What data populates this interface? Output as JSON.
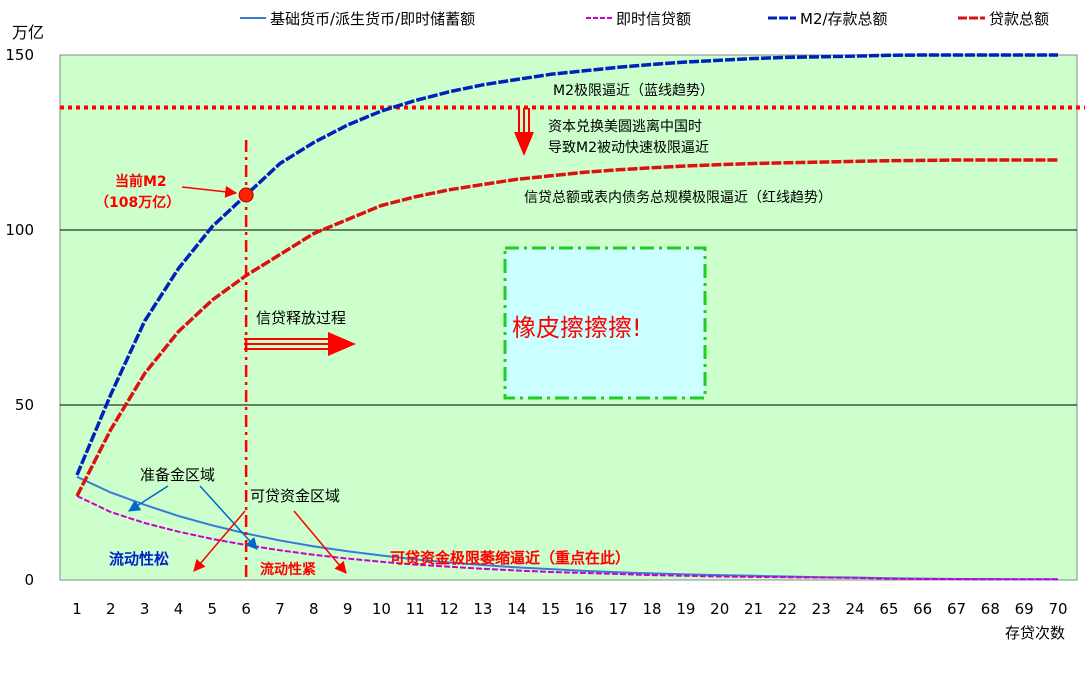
{
  "chart_data": {
    "type": "line",
    "ylabel": "万亿",
    "xlabel": "存贷次数",
    "ylim": [
      0,
      150
    ],
    "yticks": [
      0,
      50,
      100,
      150
    ],
    "categories": [
      "1",
      "2",
      "3",
      "4",
      "5",
      "6",
      "7",
      "8",
      "9",
      "10",
      "11",
      "12",
      "13",
      "14",
      "15",
      "16",
      "17",
      "18",
      "19",
      "20",
      "21",
      "22",
      "23",
      "24",
      "65",
      "66",
      "67",
      "68",
      "69",
      "70"
    ],
    "grid": "horizontal",
    "background": "#ccffcc",
    "legend_position": "top",
    "series": [
      {
        "name": "基础货币/派生货币/即时储蓄额",
        "color": "#3a7bd5",
        "values": [
          29.5,
          25.0,
          21.5,
          18.3,
          15.6,
          13.3,
          11.3,
          9.6,
          8.2,
          7.0,
          5.9,
          5.0,
          4.3,
          3.6,
          3.1,
          2.6,
          2.2,
          1.9,
          1.6,
          1.4,
          1.2,
          1.0,
          0.8,
          0.7,
          0.5,
          0.4,
          0.3,
          0.3,
          0.2,
          0.2
        ]
      },
      {
        "name": "即时信贷额",
        "color": "#cc00cc",
        "values": [
          24.0,
          19.4,
          16.3,
          13.8,
          11.7,
          10.0,
          8.5,
          7.2,
          6.1,
          5.2,
          4.4,
          3.8,
          3.2,
          2.7,
          2.3,
          2.0,
          1.7,
          1.4,
          1.2,
          1.0,
          0.9,
          0.8,
          0.7,
          0.6,
          0.4,
          0.3,
          0.3,
          0.2,
          0.2,
          0.2
        ]
      },
      {
        "name": "M2/存款总额",
        "color": "#0022bb",
        "values": [
          30,
          53,
          74,
          89,
          101,
          110,
          119,
          125,
          130,
          134,
          137,
          139.5,
          141.5,
          143,
          144.5,
          145.5,
          146.5,
          147.3,
          148,
          148.5,
          149,
          149.3,
          149.5,
          149.7,
          149.9,
          150,
          150,
          150,
          150,
          150
        ]
      },
      {
        "name": "贷款总额",
        "color": "#dd1111",
        "values": [
          24,
          43,
          59,
          71,
          80,
          87,
          93,
          99,
          103,
          107,
          109.5,
          111.5,
          113,
          114.5,
          115.5,
          116.5,
          117.2,
          117.8,
          118.3,
          118.7,
          119,
          119.2,
          119.4,
          119.6,
          119.8,
          119.9,
          120,
          120,
          120,
          120
        ]
      }
    ],
    "annotations": {
      "m2_limit": "M2极限逼近（蓝线趋势）",
      "capital_flight_line1": "资本兑换美圆逃离中国时",
      "capital_flight_line2": "导致M2被动快速极限逼近",
      "current_m2_line1": "当前M2",
      "current_m2_line2": "（108万亿）",
      "credit_limit": "信贷总额或表内债务总规模极限逼近（红线趋势）",
      "credit_release": "信贷释放过程",
      "eraser": "橡皮擦擦擦!",
      "reserve_area": "准备金区域",
      "loanable_area": "可贷资金区域",
      "liquidity_loose": "流动性松",
      "liquidity_tight": "流动性紧",
      "loanable_limit": "可贷资金极限萎缩逼近（重点在此）"
    },
    "reference_line": {
      "y": 135,
      "color": "#ff0000",
      "style": "dotted"
    },
    "marker": {
      "category": "6",
      "value": 110,
      "color": "#ff3300"
    }
  }
}
